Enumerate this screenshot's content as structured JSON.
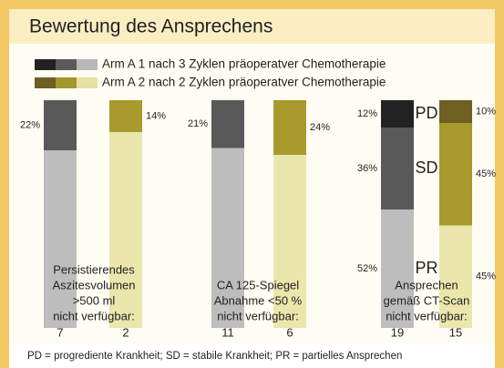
{
  "chart_data": {
    "type": "stacked-bar-panels",
    "title": "Bewertung des Ansprechens",
    "ylim": [
      0,
      100
    ],
    "series": [
      {
        "name": "Arm A 1 nach 3 Zyklen präoperatver Chemotherapie",
        "colors": [
          "#222222",
          "#5a5a5a",
          "#b8b8b8"
        ]
      },
      {
        "name": "Arm A 2 nach 2 Zyklen präoperatver Chemotherapie",
        "colors": [
          "#6e5f22",
          "#a4962e",
          "#e6e0a2"
        ]
      }
    ],
    "panels": [
      {
        "note": [
          "Persistierendes",
          "Aszitesvolumen",
          ">500 ml",
          "nicht verfügbar:"
        ],
        "missing": [
          7,
          2
        ],
        "bars": [
          {
            "segments": [
              {
                "value": 78,
                "color": "#bdbdbd"
              },
              {
                "value": 22,
                "label": "22%",
                "color": "#595959"
              }
            ]
          },
          {
            "segments": [
              {
                "value": 86,
                "color": "#ebe6ac"
              },
              {
                "value": 14,
                "label": "14%",
                "color": "#a89a2c"
              }
            ]
          }
        ]
      },
      {
        "note": [
          "CA  125-Spiegel",
          "Abnahme <50 %",
          "nicht verfügbar:"
        ],
        "missing": [
          11,
          6
        ],
        "bars": [
          {
            "segments": [
              {
                "value": 79,
                "color": "#bdbdbd"
              },
              {
                "value": 21,
                "label": "21%",
                "color": "#595959"
              }
            ]
          },
          {
            "segments": [
              {
                "value": 76,
                "color": "#ebe6ac"
              },
              {
                "value": 24,
                "label": "24%",
                "color": "#a89a2c"
              }
            ]
          }
        ]
      },
      {
        "note": [
          "Ansprechen",
          "gemäß CT-Scan",
          "nicht verfügbar:"
        ],
        "missing": [
          19,
          15
        ],
        "segment_names": [
          "PR",
          "SD",
          "PD"
        ],
        "bars": [
          {
            "segments": [
              {
                "value": 52,
                "label": "52%",
                "color": "#bdbdbd"
              },
              {
                "value": 36,
                "label": "36%",
                "color": "#595959"
              },
              {
                "value": 12,
                "label": "12%",
                "color": "#222222"
              }
            ]
          },
          {
            "segments": [
              {
                "value": 45,
                "label": "45%",
                "color": "#ebe6ac"
              },
              {
                "value": 45,
                "label": "45%",
                "color": "#a89a2c"
              },
              {
                "value": 10,
                "label": "10%",
                "color": "#6e5f22"
              }
            ]
          }
        ]
      }
    ],
    "footnote": "PD = progrediente Krankheit; SD = stabile Krankheit; PR = partielles Ansprechen"
  }
}
